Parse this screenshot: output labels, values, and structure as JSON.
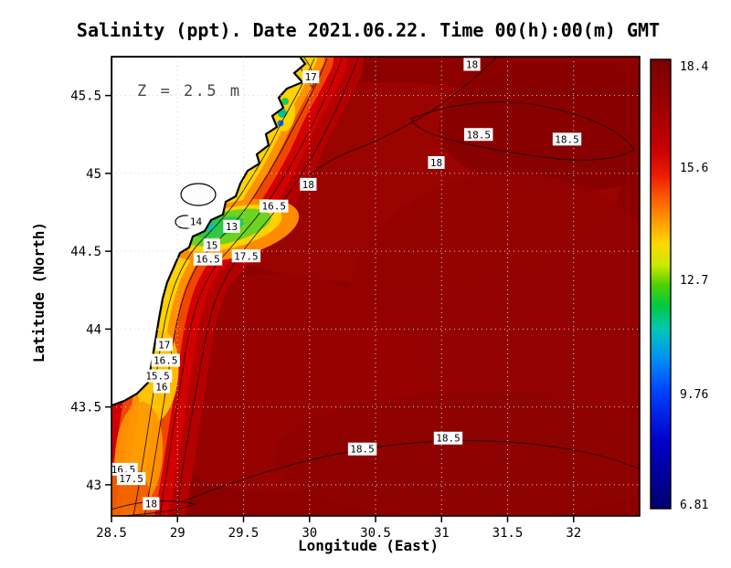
{
  "chart_data": {
    "type": "heatmap",
    "title": "Salinity (ppt). Date 2021.06.22. Time 00(h):00(m) GMT",
    "units": "ppt",
    "depth_annotation": "Z = 2.5 m",
    "xlabel": "Longitude (East)",
    "ylabel": "Latitude (North)",
    "xlim": [
      28.5,
      32.5
    ],
    "ylim": [
      42.8,
      45.75
    ],
    "x_ticks": [
      28.5,
      29,
      29.5,
      30,
      30.5,
      31,
      31.5,
      32
    ],
    "x_tick_labels": [
      "28.5",
      "29",
      "29.5",
      "30",
      "30.5",
      "31",
      "31.5",
      "32"
    ],
    "y_ticks": [
      43,
      43.5,
      44,
      44.5,
      45,
      45.5
    ],
    "y_tick_labels": [
      "43",
      "43.5",
      "44",
      "44.5",
      "45",
      "45.5"
    ],
    "grid": true,
    "colorbar": {
      "min": 6.81,
      "max": 18.4,
      "ticks": [
        18.4,
        15.6,
        12.7,
        9.76,
        6.81
      ],
      "tick_labels": [
        "18.4",
        "15.6",
        "12.7",
        "9.76",
        "6.81"
      ],
      "gradient_stops": [
        {
          "pos": 0.0,
          "color": "#7a0000"
        },
        {
          "pos": 0.1,
          "color": "#9b0000"
        },
        {
          "pos": 0.2,
          "color": "#c80000"
        },
        {
          "pos": 0.26,
          "color": "#ee1e00"
        },
        {
          "pos": 0.31,
          "color": "#ff5c00"
        },
        {
          "pos": 0.36,
          "color": "#ff9c00"
        },
        {
          "pos": 0.41,
          "color": "#ffd700"
        },
        {
          "pos": 0.46,
          "color": "#c8e800"
        },
        {
          "pos": 0.5,
          "color": "#50d200"
        },
        {
          "pos": 0.55,
          "color": "#00c846"
        },
        {
          "pos": 0.6,
          "color": "#00c8b4"
        },
        {
          "pos": 0.66,
          "color": "#0096f0"
        },
        {
          "pos": 0.74,
          "color": "#0041ff"
        },
        {
          "pos": 0.85,
          "color": "#0000c8"
        },
        {
          "pos": 1.0,
          "color": "#000070"
        }
      ]
    },
    "contour_labels": [
      {
        "value": "17",
        "lon": 30.01,
        "lat": 45.62
      },
      {
        "value": "18",
        "lon": 31.23,
        "lat": 45.7
      },
      {
        "value": "18.5",
        "lon": 31.28,
        "lat": 45.25
      },
      {
        "value": "18.5",
        "lon": 31.95,
        "lat": 45.22
      },
      {
        "value": "18",
        "lon": 30.96,
        "lat": 45.07
      },
      {
        "value": "18",
        "lon": 29.99,
        "lat": 44.93
      },
      {
        "value": "16.5",
        "lon": 29.73,
        "lat": 44.79
      },
      {
        "value": "14",
        "lon": 29.14,
        "lat": 44.69
      },
      {
        "value": "13",
        "lon": 29.41,
        "lat": 44.66
      },
      {
        "value": "15",
        "lon": 29.26,
        "lat": 44.54
      },
      {
        "value": "16.5",
        "lon": 29.23,
        "lat": 44.45
      },
      {
        "value": "17.5",
        "lon": 29.52,
        "lat": 44.47
      },
      {
        "value": "17",
        "lon": 28.9,
        "lat": 43.9
      },
      {
        "value": "16.5",
        "lon": 28.91,
        "lat": 43.8
      },
      {
        "value": "15.5",
        "lon": 28.85,
        "lat": 43.7
      },
      {
        "value": "16",
        "lon": 28.88,
        "lat": 43.63
      },
      {
        "value": "16.5",
        "lon": 28.59,
        "lat": 43.1
      },
      {
        "value": "17.5",
        "lon": 28.65,
        "lat": 43.04
      },
      {
        "value": "18",
        "lon": 28.8,
        "lat": 42.88
      },
      {
        "value": "18.5",
        "lon": 30.4,
        "lat": 43.23
      },
      {
        "value": "18.5",
        "lon": 31.05,
        "lat": 43.3
      }
    ],
    "colors": {
      "sea_base": "#8c0100",
      "land": "#ffffff",
      "coastline": "#000000",
      "grid": "#d2d2d2"
    }
  }
}
